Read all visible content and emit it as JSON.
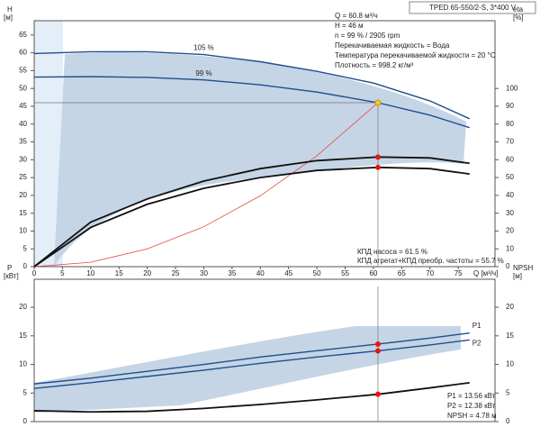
{
  "header": {
    "title": "TPED 65-550/2-S, 3*400 V"
  },
  "info": [
    "Q = 60.8 м³/ч",
    "H = 46 м",
    "n = 99 % / 2905 rpm",
    "Перекачиваемая жидкость = Вода",
    "Температура перекачиваемой жидкости = 20 °C",
    "Плотность = 998.2 кг/м³"
  ],
  "efficiency_info": [
    "КПД насоса = 61.5 %",
    "КПД агрегат+КПД преобр. частоты = 55.7 %"
  ],
  "power_info": [
    "P1 = 13.56 кВт",
    "P2 = 12.38 кВт",
    "NPSH = 4.78 м"
  ],
  "chart_data": [
    {
      "type": "line",
      "ylabel": "H",
      "yunit": "[м]",
      "y2label": "eta",
      "y2unit": "[%]",
      "xlabel": "Q [м³/ч]",
      "xlim": [
        0,
        81.5
      ],
      "xticks": [
        0,
        5,
        10,
        15,
        20,
        25,
        30,
        35,
        40,
        45,
        50,
        55,
        60,
        65,
        70,
        75
      ],
      "ylim": [
        0,
        69
      ],
      "yticks": [
        0,
        5,
        10,
        15,
        20,
        25,
        30,
        35,
        40,
        45,
        50,
        55,
        60,
        65
      ],
      "y2lim": [
        0,
        138
      ],
      "y2ticks": [
        0,
        10,
        20,
        30,
        40,
        50,
        60,
        70,
        80,
        90,
        100
      ],
      "grid": false,
      "series": [
        {
          "label": "105 %",
          "color": "#1f4e8c",
          "x": [
            0,
            10,
            20,
            30,
            40,
            50,
            60,
            70,
            77
          ],
          "values": [
            59.8,
            60.3,
            60.3,
            59.5,
            57.5,
            54.8,
            51.5,
            46.5,
            41.5
          ]
        },
        {
          "label": "99 %",
          "color": "#1f4e8c",
          "x": [
            0,
            10,
            20,
            30,
            40,
            50,
            60.8,
            70,
            77
          ],
          "values": [
            53.2,
            53.3,
            53.1,
            52.4,
            51,
            49,
            46,
            42.5,
            39
          ]
        },
        {
          "color": "#e8453c",
          "x": [
            0,
            10,
            20,
            30,
            40,
            50,
            60.8
          ],
          "values": [
            0,
            1.24,
            4.98,
            11.2,
            19.9,
            31.1,
            46
          ]
        },
        {
          "color": "#111111",
          "axis": "y2",
          "x": [
            0,
            10,
            20,
            30,
            40,
            50,
            60.8,
            70,
            77
          ],
          "values": [
            0,
            25,
            38,
            48,
            55,
            59.5,
            61.5,
            61,
            58
          ]
        },
        {
          "color": "#111111",
          "axis": "y2",
          "x": [
            0,
            10,
            20,
            30,
            40,
            50,
            60.8,
            70,
            77
          ],
          "values": [
            0,
            22,
            35,
            44,
            50,
            54,
            55.7,
            55,
            52
          ]
        }
      ],
      "points": [
        {
          "x": 60.8,
          "y": 46,
          "color": "#f5c542"
        },
        {
          "x": 60.8,
          "y": 61.5,
          "axis": "y2",
          "color": "#e8150c"
        },
        {
          "x": 60.8,
          "y": 55.7,
          "axis": "y2",
          "color": "#e8150c"
        }
      ]
    },
    {
      "type": "line",
      "ylabel": "P",
      "yunit": "[кВт]",
      "y2label": "NPSH",
      "y2unit": "[м]",
      "xlim": [
        0,
        81.5
      ],
      "ylim": [
        0,
        24.9
      ],
      "yticks": [
        0,
        5,
        10,
        15,
        20
      ],
      "y2lim": [
        0,
        24.9
      ],
      "y2ticks": [
        0,
        5,
        10,
        15,
        20
      ],
      "grid": false,
      "series": [
        {
          "label": "P1",
          "color": "#1f4e8c",
          "x": [
            0,
            10,
            20,
            30,
            40,
            50,
            60.8,
            70,
            77
          ],
          "values": [
            6.6,
            7.6,
            8.8,
            10,
            11.3,
            12.4,
            13.56,
            14.6,
            15.5
          ]
        },
        {
          "label": "P2",
          "color": "#1f4e8c",
          "x": [
            0,
            10,
            20,
            30,
            40,
            50,
            60.8,
            70,
            77
          ],
          "values": [
            5.8,
            6.8,
            7.9,
            9,
            10.2,
            11.3,
            12.38,
            13.4,
            14.3
          ]
        },
        {
          "color": "#111111",
          "axis": "y2",
          "x": [
            0,
            10,
            20,
            30,
            40,
            50,
            60.8,
            70,
            77
          ],
          "values": [
            1.9,
            1.7,
            1.8,
            2.3,
            3,
            3.8,
            4.78,
            5.9,
            6.8
          ]
        }
      ],
      "points": [
        {
          "x": 60.8,
          "y": 13.56,
          "color": "#e8150c"
        },
        {
          "x": 60.8,
          "y": 12.38,
          "color": "#e8150c"
        },
        {
          "x": 60.8,
          "y": 4.78,
          "axis": "y2",
          "color": "#e8150c"
        }
      ]
    }
  ]
}
